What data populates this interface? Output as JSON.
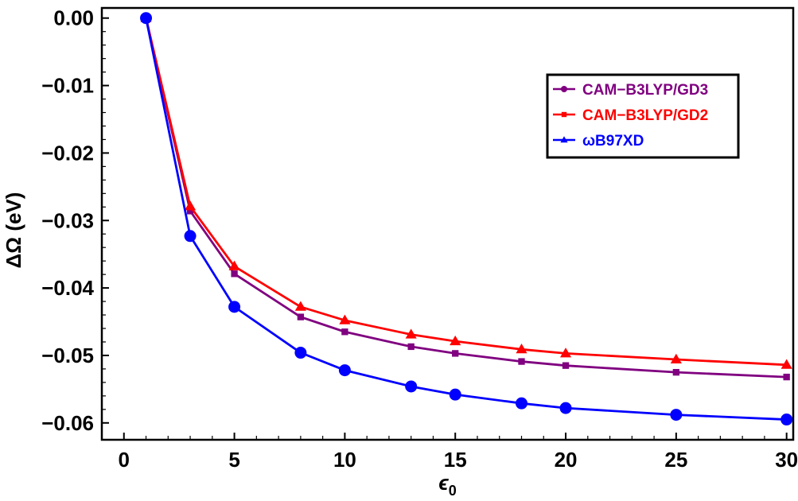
{
  "chart_data": {
    "type": "line",
    "xlabel": "ϵ0",
    "ylabel": "ΔΩ (eV)",
    "xlim": [
      -1,
      30.3
    ],
    "ylim": [
      -0.0625,
      0.0015
    ],
    "xticks": [
      0,
      5,
      10,
      15,
      20,
      25,
      30
    ],
    "xtick_labels": [
      "0",
      "5",
      "10",
      "15",
      "20",
      "25",
      "30"
    ],
    "yticks": [
      0.0,
      -0.01,
      -0.02,
      -0.03,
      -0.04,
      -0.05,
      -0.06
    ],
    "ytick_labels": [
      "0.00",
      "−0.01",
      "−0.02",
      "−0.03",
      "−0.04",
      "−0.05",
      "−0.06"
    ],
    "x": [
      1,
      3,
      5,
      8,
      10,
      13,
      15,
      18,
      20,
      25,
      30
    ],
    "legend_position": "top-right",
    "series": [
      {
        "name": "CAM−B3LYP/GD3",
        "color": "#800080",
        "marker": "square",
        "legend_marker": "circle",
        "values": [
          0.0,
          -0.0286,
          -0.0379,
          -0.0443,
          -0.0465,
          -0.0487,
          -0.0497,
          -0.0509,
          -0.0515,
          -0.0525,
          -0.0532
        ]
      },
      {
        "name": "CAM−B3LYP/GD2",
        "color": "#ff0000",
        "marker": "triangle",
        "legend_marker": "square",
        "values": [
          0.0,
          -0.0279,
          -0.0368,
          -0.0428,
          -0.0448,
          -0.0469,
          -0.0479,
          -0.0491,
          -0.0497,
          -0.0506,
          -0.0514
        ]
      },
      {
        "name": "ωB97XD",
        "color": "#0000ff",
        "marker": "circle",
        "legend_marker": "triangle",
        "values": [
          0.0,
          -0.0323,
          -0.0428,
          -0.0496,
          -0.0522,
          -0.0546,
          -0.0558,
          -0.0571,
          -0.0578,
          -0.0588,
          -0.0595
        ]
      }
    ]
  }
}
